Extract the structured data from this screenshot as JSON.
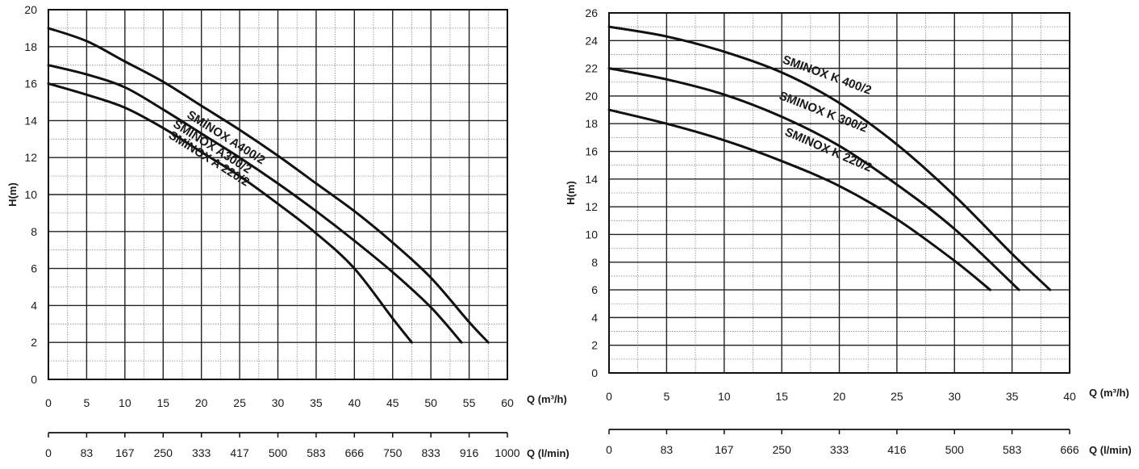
{
  "chart_data": [
    {
      "type": "line",
      "ylabel": "H(m)",
      "xlabel": "Q (m³/h)",
      "x2label": "Q (l/min)",
      "xlim": [
        0,
        60
      ],
      "ylim": [
        0,
        20
      ],
      "xticks": [
        0,
        5,
        10,
        15,
        20,
        25,
        30,
        35,
        40,
        45,
        50,
        55,
        60
      ],
      "yticks": [
        0,
        2,
        4,
        6,
        8,
        10,
        12,
        14,
        16,
        18,
        20
      ],
      "x2ticks": [
        "0",
        "83",
        "167",
        "250",
        "333",
        "417",
        "500",
        "583",
        "666",
        "750",
        "833",
        "916",
        "1000"
      ],
      "x_minor_step": 2.5,
      "y_minor_step": 1,
      "grid": true,
      "series": [
        {
          "name": "SMİNOX A400/2",
          "x": [
            0,
            5,
            10,
            15,
            20,
            25,
            30,
            35,
            40,
            45,
            50,
            55,
            57.5
          ],
          "y": [
            19,
            18.3,
            17.2,
            16.1,
            14.8,
            13.5,
            12.1,
            10.6,
            9.1,
            7.4,
            5.5,
            3.1,
            2
          ],
          "label_at": [
            18,
            14.2
          ]
        },
        {
          "name": "SMİNOX A300/2",
          "x": [
            0,
            5,
            10,
            15,
            20,
            25,
            30,
            35,
            40,
            45,
            50,
            54
          ],
          "y": [
            17,
            16.5,
            15.8,
            14.6,
            13.3,
            12,
            10.6,
            9.1,
            7.5,
            5.8,
            3.9,
            2
          ],
          "label_at": [
            16.2,
            13.7
          ]
        },
        {
          "name": "SMİNOX A 220/2",
          "x": [
            0,
            5,
            10,
            15,
            20,
            25,
            30,
            35,
            40,
            45,
            47.5
          ],
          "y": [
            16,
            15.4,
            14.7,
            13.6,
            12.3,
            11,
            9.5,
            7.9,
            6,
            3.3,
            2
          ],
          "label_at": [
            15.6,
            13.1
          ]
        }
      ]
    },
    {
      "type": "line",
      "ylabel": "H(m)",
      "xlabel": "Q (m³/h)",
      "x2label": "Q (l/min)",
      "xlim": [
        0,
        40
      ],
      "ylim": [
        0,
        26
      ],
      "xticks": [
        0,
        5,
        10,
        15,
        20,
        25,
        30,
        35,
        40
      ],
      "yticks": [
        0,
        2,
        4,
        6,
        8,
        10,
        12,
        14,
        16,
        18,
        20,
        22,
        24,
        26
      ],
      "x2ticks": [
        "0",
        "83",
        "167",
        "250",
        "333",
        "416",
        "500",
        "583",
        "666"
      ],
      "x_minor_step": 2.5,
      "y_minor_step": 1,
      "grid": true,
      "series": [
        {
          "name": "SMINOX K 400/2",
          "x": [
            0,
            5,
            10,
            15,
            20,
            25,
            30,
            35,
            38.3
          ],
          "y": [
            25,
            24.3,
            23.2,
            21.7,
            19.5,
            16.5,
            12.8,
            8.6,
            6
          ],
          "label_at": [
            15,
            22.4
          ]
        },
        {
          "name": "SMINOX K 300/2",
          "x": [
            0,
            5,
            10,
            15,
            20,
            25,
            30,
            35.6
          ],
          "y": [
            22,
            21.2,
            20.1,
            18.5,
            16.4,
            13.6,
            10.4,
            6
          ],
          "label_at": [
            14.7,
            19.8
          ]
        },
        {
          "name": "SMINOX K 220/2",
          "x": [
            0,
            5,
            10,
            15,
            20,
            25,
            30,
            33.1
          ],
          "y": [
            19,
            18,
            16.8,
            15.3,
            13.5,
            11.1,
            8.1,
            6
          ],
          "label_at": [
            15.2,
            17.2
          ]
        }
      ]
    }
  ]
}
